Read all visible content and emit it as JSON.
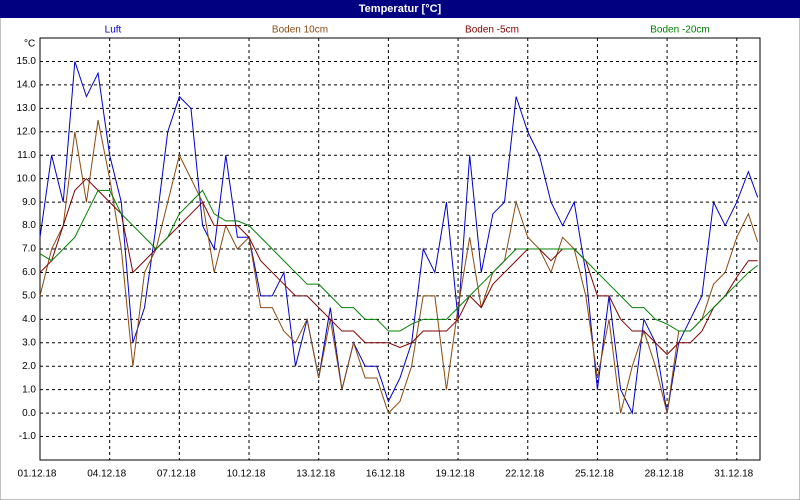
{
  "chart_data": {
    "type": "line",
    "title": "Temperatur [°C]",
    "y_label": "°C",
    "x": [
      0,
      0.5,
      1,
      1.5,
      2,
      2.5,
      3,
      3.5,
      4,
      4.5,
      5,
      5.5,
      6,
      6.5,
      7,
      7.5,
      8,
      8.5,
      9,
      9.5,
      10,
      10.5,
      11,
      11.5,
      12,
      12.5,
      13,
      13.5,
      14,
      14.5,
      15,
      15.5,
      16,
      16.5,
      17,
      17.5,
      18,
      18.5,
      19,
      19.5,
      20,
      20.5,
      21,
      21.5,
      22,
      22.5,
      23,
      23.5,
      24,
      24.5,
      25,
      25.5,
      26,
      26.5,
      27,
      27.5,
      28,
      28.5,
      29,
      29.5,
      30,
      30.5,
      30.9
    ],
    "xlim": [
      0,
      31
    ],
    "xticks": [
      {
        "value": 0,
        "label": "01.12.18"
      },
      {
        "value": 3,
        "label": "04.12.18"
      },
      {
        "value": 6,
        "label": "07.12.18"
      },
      {
        "value": 9,
        "label": "10.12.18"
      },
      {
        "value": 12,
        "label": "13.12.18"
      },
      {
        "value": 15,
        "label": "16.12.18"
      },
      {
        "value": 18,
        "label": "19.12.18"
      },
      {
        "value": 21,
        "label": "22.12.18"
      },
      {
        "value": 24,
        "label": "25.12.18"
      },
      {
        "value": 27,
        "label": "28.12.18"
      },
      {
        "value": 30,
        "label": "31.12.18"
      }
    ],
    "ylim": [
      -2,
      16
    ],
    "yticks": [
      {
        "value": -1,
        "label": "-1.0"
      },
      {
        "value": 0,
        "label": "0.0"
      },
      {
        "value": 1,
        "label": "1.0"
      },
      {
        "value": 2,
        "label": "2.0"
      },
      {
        "value": 3,
        "label": "3.0"
      },
      {
        "value": 4,
        "label": "4.0"
      },
      {
        "value": 5,
        "label": "5.0"
      },
      {
        "value": 6,
        "label": "6.0"
      },
      {
        "value": 7,
        "label": "7.0"
      },
      {
        "value": 8,
        "label": "8.0"
      },
      {
        "value": 9,
        "label": "9.0"
      },
      {
        "value": 10,
        "label": "10.0"
      },
      {
        "value": 11,
        "label": "11.0"
      },
      {
        "value": 12,
        "label": "12.0"
      },
      {
        "value": 13,
        "label": "13.0"
      },
      {
        "value": 14,
        "label": "14.0"
      },
      {
        "value": 15,
        "label": "15.0"
      }
    ],
    "grid": true,
    "series": [
      {
        "name": "Luft",
        "color": "#0000cc",
        "values": [
          7.5,
          11,
          9,
          15,
          13.5,
          14.5,
          11,
          9,
          3,
          4.5,
          8,
          12,
          13.5,
          13,
          8,
          7,
          11,
          7.5,
          7.5,
          5,
          5,
          6,
          2,
          4,
          1.5,
          4.5,
          1,
          3,
          2,
          2,
          0.5,
          1.5,
          3,
          7,
          6,
          9,
          4,
          11,
          6,
          8.5,
          9,
          13.5,
          12,
          11,
          9,
          8,
          9,
          6,
          1,
          5,
          1,
          0,
          4,
          3,
          0,
          3,
          4,
          5,
          9,
          8,
          9,
          10.3,
          9.2
        ]
      },
      {
        "name": "Boden 10cm",
        "color": "#8b4a0f",
        "values": [
          5,
          7,
          8,
          12,
          9,
          12.5,
          10,
          7,
          2,
          6,
          7,
          9,
          11,
          10,
          9,
          6,
          8,
          7,
          7.5,
          4.5,
          4.5,
          3.5,
          3,
          4,
          1.5,
          4,
          1,
          3,
          1.5,
          1.5,
          0,
          0.5,
          2,
          5,
          5,
          1,
          4.5,
          7.5,
          4.5,
          6,
          6.5,
          9,
          7.5,
          7,
          6,
          7.5,
          7,
          5,
          1.5,
          4,
          0,
          2,
          3.5,
          2,
          0,
          3.5,
          3.5,
          4,
          5.5,
          6,
          7.5,
          8.5,
          7.3
        ]
      },
      {
        "name": "Boden -5cm",
        "color": "#800000",
        "values": [
          6,
          6.5,
          8,
          9.5,
          10,
          9.5,
          9,
          8.5,
          6,
          6.5,
          7,
          7.5,
          8,
          8.5,
          9,
          8,
          8,
          8,
          7.5,
          6.5,
          6,
          5.5,
          5,
          5,
          4.5,
          4,
          3.5,
          3.5,
          3,
          3,
          3,
          2.8,
          3,
          3.5,
          3.5,
          3.5,
          4,
          5,
          4.5,
          5.5,
          6,
          6.5,
          7,
          7,
          6.5,
          7,
          7,
          6.5,
          5,
          5,
          4,
          3.5,
          3.5,
          3,
          2.5,
          3,
          3,
          3.5,
          4.5,
          5,
          5.8,
          6.5,
          6.5
        ]
      },
      {
        "name": "Boden -20cm",
        "color": "#008000",
        "values": [
          6.8,
          6.5,
          7,
          7.5,
          8.5,
          9.5,
          9.5,
          8.5,
          8,
          7.5,
          7,
          7.5,
          8.5,
          9,
          9.5,
          8.5,
          8.2,
          8.2,
          8,
          7.5,
          7,
          6.5,
          6,
          5.5,
          5.5,
          5,
          4.5,
          4.5,
          4,
          4,
          3.5,
          3.5,
          3.8,
          4,
          4,
          4,
          4.5,
          5,
          5.5,
          6,
          6.5,
          7,
          7,
          7,
          7,
          7,
          7,
          6.5,
          6,
          5.5,
          5,
          4.5,
          4.5,
          4,
          3.8,
          3.5,
          3.5,
          4,
          4.5,
          5,
          5.5,
          6,
          6.3
        ]
      }
    ]
  }
}
